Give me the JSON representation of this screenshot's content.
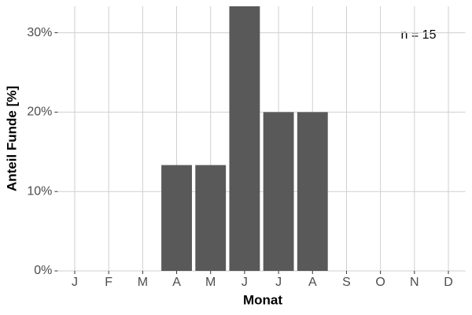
{
  "chart_data": {
    "type": "bar",
    "x_label": "Monat",
    "y_label": "Anteil Funde [%]",
    "annotation": "n = 15",
    "categories": [
      "J",
      "F",
      "M",
      "A",
      "M",
      "J",
      "J",
      "A",
      "S",
      "O",
      "N",
      "D"
    ],
    "values": [
      0,
      0,
      0,
      13.33,
      13.33,
      33.33,
      20,
      20,
      0,
      0,
      0,
      0
    ],
    "color": "#595959",
    "ylim": [
      0,
      33.33
    ],
    "yticks": [
      {
        "value": 0,
        "label": "0%"
      },
      {
        "value": 10,
        "label": "10%"
      },
      {
        "value": 20,
        "label": "20%"
      },
      {
        "value": 30,
        "label": "30%"
      }
    ],
    "grid": true
  }
}
